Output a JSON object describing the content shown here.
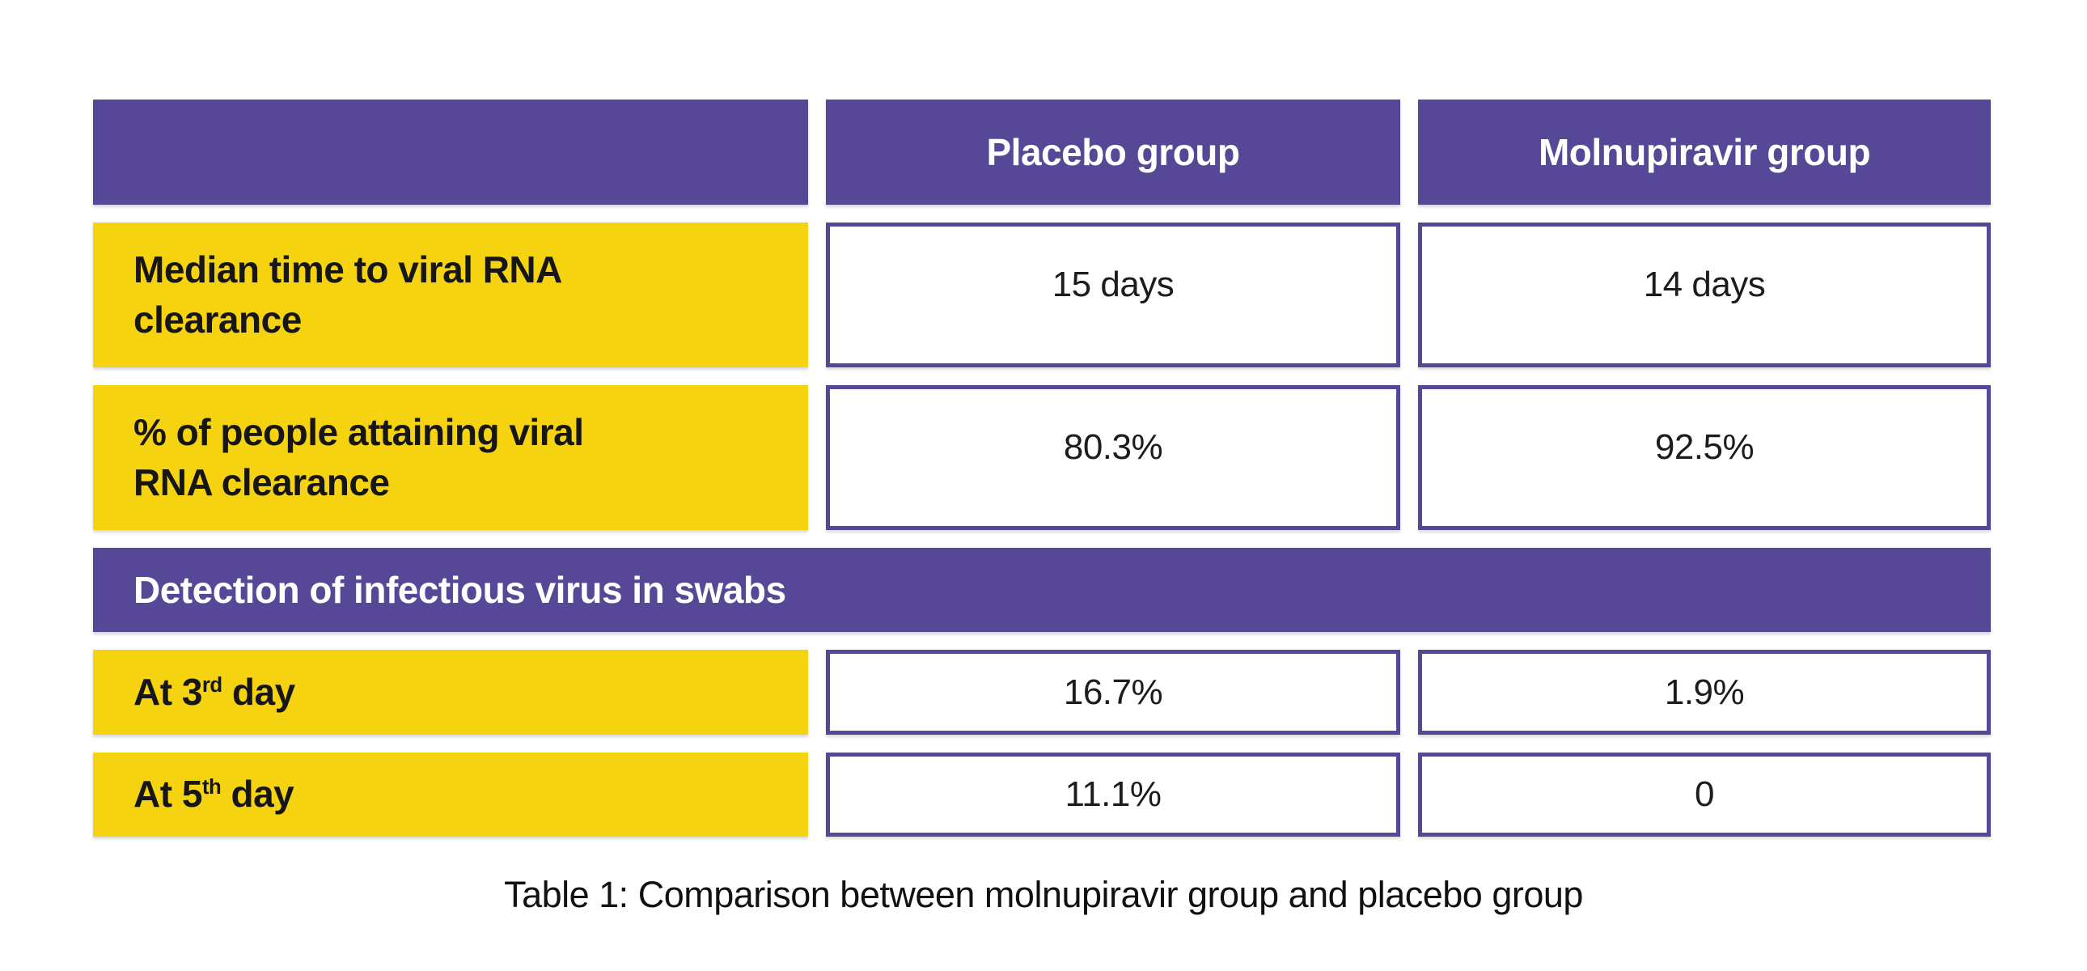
{
  "colors": {
    "purple": "#564896",
    "yellow": "#F5D310",
    "header_text": "#FFFFFF",
    "body_text": "#161616",
    "background": "#FFFFFF"
  },
  "table": {
    "header": {
      "col1": "",
      "placebo": "Placebo group",
      "molnupiravir": "Molnupiravir group"
    },
    "rows": [
      {
        "label": "Median time to viral RNA\nclearance",
        "placebo": "15 days",
        "molnupiravir": "14 days"
      },
      {
        "label": "% of people attaining viral\nRNA clearance",
        "placebo": "80.3%",
        "molnupiravir": "92.5%"
      }
    ],
    "section_header": "Detection of infectious virus in swabs",
    "section_rows": [
      {
        "label_prefix": "At 3",
        "label_sup": "rd",
        "label_suffix": " day",
        "placebo": "16.7%",
        "molnupiravir": "1.9%"
      },
      {
        "label_prefix": "At 5",
        "label_sup": "th",
        "label_suffix": " day",
        "placebo": "11.1%",
        "molnupiravir": "0"
      }
    ],
    "caption": "Table 1: Comparison between molnupiravir group and placebo group"
  },
  "chart_data": {
    "type": "table",
    "title": "Table 1: Comparison between molnupiravir group and placebo group",
    "columns": [
      "",
      "Placebo group",
      "Molnupiravir group"
    ],
    "rows": [
      [
        "Median time to viral RNA clearance",
        "15 days",
        "14 days"
      ],
      [
        "% of people attaining viral RNA clearance",
        "80.3%",
        "92.5%"
      ],
      [
        "Detection of infectious virus in swabs",
        "",
        ""
      ],
      [
        "At 3rd day",
        "16.7%",
        "1.9%"
      ],
      [
        "At 5th day",
        "11.1%",
        "0"
      ]
    ]
  }
}
